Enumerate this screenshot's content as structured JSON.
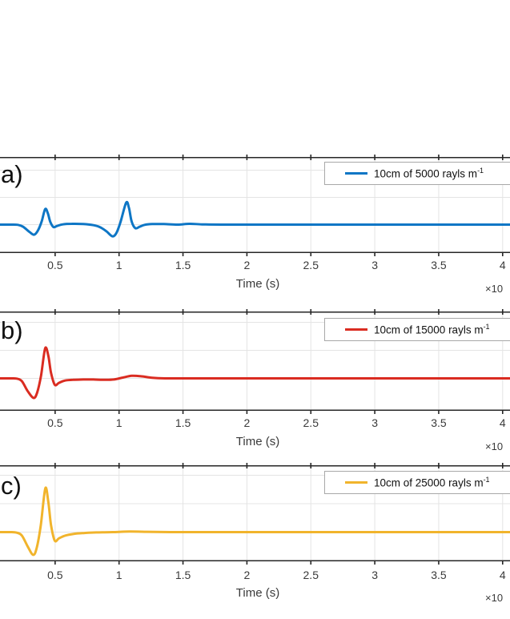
{
  "labels": {
    "xlabel": "Time (s)",
    "x_exponent": "×10"
  },
  "colors": {
    "background": "#ffffff",
    "axis": "#262626",
    "grid": "#e4e4e4",
    "tick_text": "#3a3a3a",
    "legend_border": "#a8a8a8"
  },
  "x_tick_labels": [
    "0.5",
    "1",
    "1.5",
    "2",
    "2.5",
    "3",
    "3.5",
    "4"
  ],
  "chart_data": [
    {
      "type": "line",
      "panel_label": "a)",
      "legend": "10cm of 5000 rayls m",
      "legend_sup": "-1",
      "color": "#0e76c5",
      "xlabel": "Time (s)",
      "x_scale_label": "×10",
      "x_tick_values": [
        0.5,
        1,
        1.5,
        2,
        2.5,
        3,
        3.5,
        4
      ],
      "xlim": [
        0.07,
        4.06
      ],
      "ylim_au": [
        -1.05,
        2.45
      ],
      "y_gridlines_au": [
        0,
        1,
        2
      ],
      "y_units": "arbitrary units (y-axis labels cropped out of view)",
      "points": [
        [
          0.069,
          0
        ],
        [
          0.15,
          0
        ],
        [
          0.21,
          -0.01
        ],
        [
          0.25,
          -0.08
        ],
        [
          0.3,
          -0.27
        ],
        [
          0.335,
          -0.37
        ],
        [
          0.365,
          -0.22
        ],
        [
          0.395,
          0.12
        ],
        [
          0.422,
          0.57
        ],
        [
          0.443,
          0.42
        ],
        [
          0.462,
          0.1
        ],
        [
          0.487,
          -0.09
        ],
        [
          0.515,
          -0.05
        ],
        [
          0.56,
          0.01
        ],
        [
          0.63,
          0.03
        ],
        [
          0.72,
          0.02
        ],
        [
          0.8,
          -0.02
        ],
        [
          0.85,
          -0.09
        ],
        [
          0.9,
          -0.24
        ],
        [
          0.948,
          -0.43
        ],
        [
          0.98,
          -0.3
        ],
        [
          1.012,
          0.1
        ],
        [
          1.056,
          0.81
        ],
        [
          1.078,
          0.6
        ],
        [
          1.098,
          0.12
        ],
        [
          1.127,
          -0.13
        ],
        [
          1.16,
          -0.08
        ],
        [
          1.2,
          -0.01
        ],
        [
          1.26,
          0.02
        ],
        [
          1.35,
          0.02
        ],
        [
          1.46,
          0.0
        ],
        [
          1.55,
          0.03
        ],
        [
          1.65,
          0.01
        ],
        [
          1.8,
          0.0
        ],
        [
          2.2,
          0.0
        ],
        [
          2.8,
          0.0
        ],
        [
          3.4,
          0.0
        ],
        [
          4.06,
          0.0
        ]
      ]
    },
    {
      "type": "line",
      "panel_label": "b)",
      "legend": "10cm of 15000 rayls m",
      "legend_sup": "-1",
      "color": "#da2c21",
      "xlabel": "Time (s)",
      "x_scale_label": "×10",
      "x_tick_values": [
        0.5,
        1,
        1.5,
        2,
        2.5,
        3,
        3.5,
        4
      ],
      "xlim": [
        0.07,
        4.06
      ],
      "ylim_au": [
        -1.15,
        2.4
      ],
      "y_gridlines_au": [
        0,
        1,
        2
      ],
      "y_units": "arbitrary units (y-axis labels cropped out of view)",
      "points": [
        [
          0.069,
          0
        ],
        [
          0.15,
          0
        ],
        [
          0.2,
          -0.01
        ],
        [
          0.24,
          -0.1
        ],
        [
          0.285,
          -0.45
        ],
        [
          0.332,
          -0.7
        ],
        [
          0.36,
          -0.5
        ],
        [
          0.39,
          0.1
        ],
        [
          0.422,
          1.07
        ],
        [
          0.447,
          0.8
        ],
        [
          0.468,
          0.2
        ],
        [
          0.497,
          -0.23
        ],
        [
          0.53,
          -0.16
        ],
        [
          0.575,
          -0.08
        ],
        [
          0.64,
          -0.05
        ],
        [
          0.72,
          -0.04
        ],
        [
          0.8,
          -0.04
        ],
        [
          0.88,
          -0.05
        ],
        [
          0.96,
          -0.04
        ],
        [
          1.03,
          0.03
        ],
        [
          1.1,
          0.09
        ],
        [
          1.18,
          0.07
        ],
        [
          1.26,
          0.02
        ],
        [
          1.36,
          0.0
        ],
        [
          1.5,
          0.0
        ],
        [
          1.8,
          0.0
        ],
        [
          2.4,
          0.0
        ],
        [
          3.2,
          0.0
        ],
        [
          4.06,
          0.0
        ]
      ]
    },
    {
      "type": "line",
      "panel_label": "c)",
      "legend": "10cm of 25000 rayls m",
      "legend_sup": "-1",
      "color": "#f1b42c",
      "xlabel": "Time (s)",
      "x_scale_label": "×10",
      "x_tick_values": [
        0.5,
        1,
        1.5,
        2,
        2.5,
        3,
        3.5,
        4
      ],
      "xlim": [
        0.07,
        4.06
      ],
      "ylim_au": [
        -1.05,
        2.35
      ],
      "y_gridlines_au": [
        0,
        1,
        2
      ],
      "y_units": "arbitrary units (y-axis labels cropped out of view)",
      "points": [
        [
          0.069,
          0
        ],
        [
          0.15,
          0
        ],
        [
          0.2,
          -0.02
        ],
        [
          0.24,
          -0.12
        ],
        [
          0.285,
          -0.5
        ],
        [
          0.328,
          -0.8
        ],
        [
          0.356,
          -0.55
        ],
        [
          0.388,
          0.25
        ],
        [
          0.423,
          1.54
        ],
        [
          0.447,
          1.05
        ],
        [
          0.468,
          0.25
        ],
        [
          0.497,
          -0.3
        ],
        [
          0.53,
          -0.22
        ],
        [
          0.58,
          -0.12
        ],
        [
          0.65,
          -0.06
        ],
        [
          0.73,
          -0.03
        ],
        [
          0.82,
          -0.01
        ],
        [
          0.95,
          0.0
        ],
        [
          1.08,
          0.02
        ],
        [
          1.2,
          0.01
        ],
        [
          1.4,
          0.0
        ],
        [
          1.8,
          0.0
        ],
        [
          2.4,
          0.0
        ],
        [
          3.2,
          0.0
        ],
        [
          4.06,
          0.0
        ]
      ]
    }
  ]
}
